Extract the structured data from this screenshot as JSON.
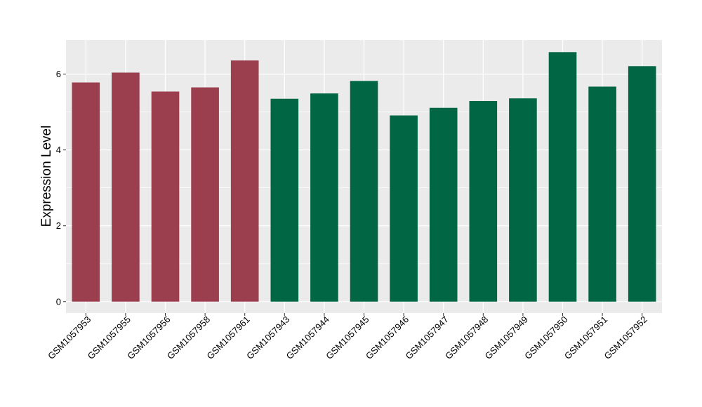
{
  "chart_data": {
    "type": "bar",
    "title": "",
    "xlabel": "",
    "ylabel": "Expression Level",
    "ylim": [
      -0.3,
      6.9
    ],
    "yticks": [
      0,
      2,
      4,
      6
    ],
    "grid": true,
    "legend": "none",
    "background_color": "#EBEBEB",
    "categories": [
      "GSM1057953",
      "GSM1057955",
      "GSM1057956",
      "GSM1057958",
      "GSM1057961",
      "GSM1057943",
      "GSM1057944",
      "GSM1057945",
      "GSM1057946",
      "GSM1057947",
      "GSM1057948",
      "GSM1057949",
      "GSM1057950",
      "GSM1057951",
      "GSM1057952"
    ],
    "values": [
      5.78,
      6.04,
      5.54,
      5.65,
      6.36,
      5.35,
      5.49,
      5.82,
      4.91,
      5.11,
      5.29,
      5.36,
      6.58,
      5.67,
      6.21
    ],
    "bar_colors": [
      "#9B3F4F",
      "#9B3F4F",
      "#9B3F4F",
      "#9B3F4F",
      "#9B3F4F",
      "#006644",
      "#006644",
      "#006644",
      "#006644",
      "#006644",
      "#006644",
      "#006644",
      "#006644",
      "#006644",
      "#006644"
    ]
  }
}
